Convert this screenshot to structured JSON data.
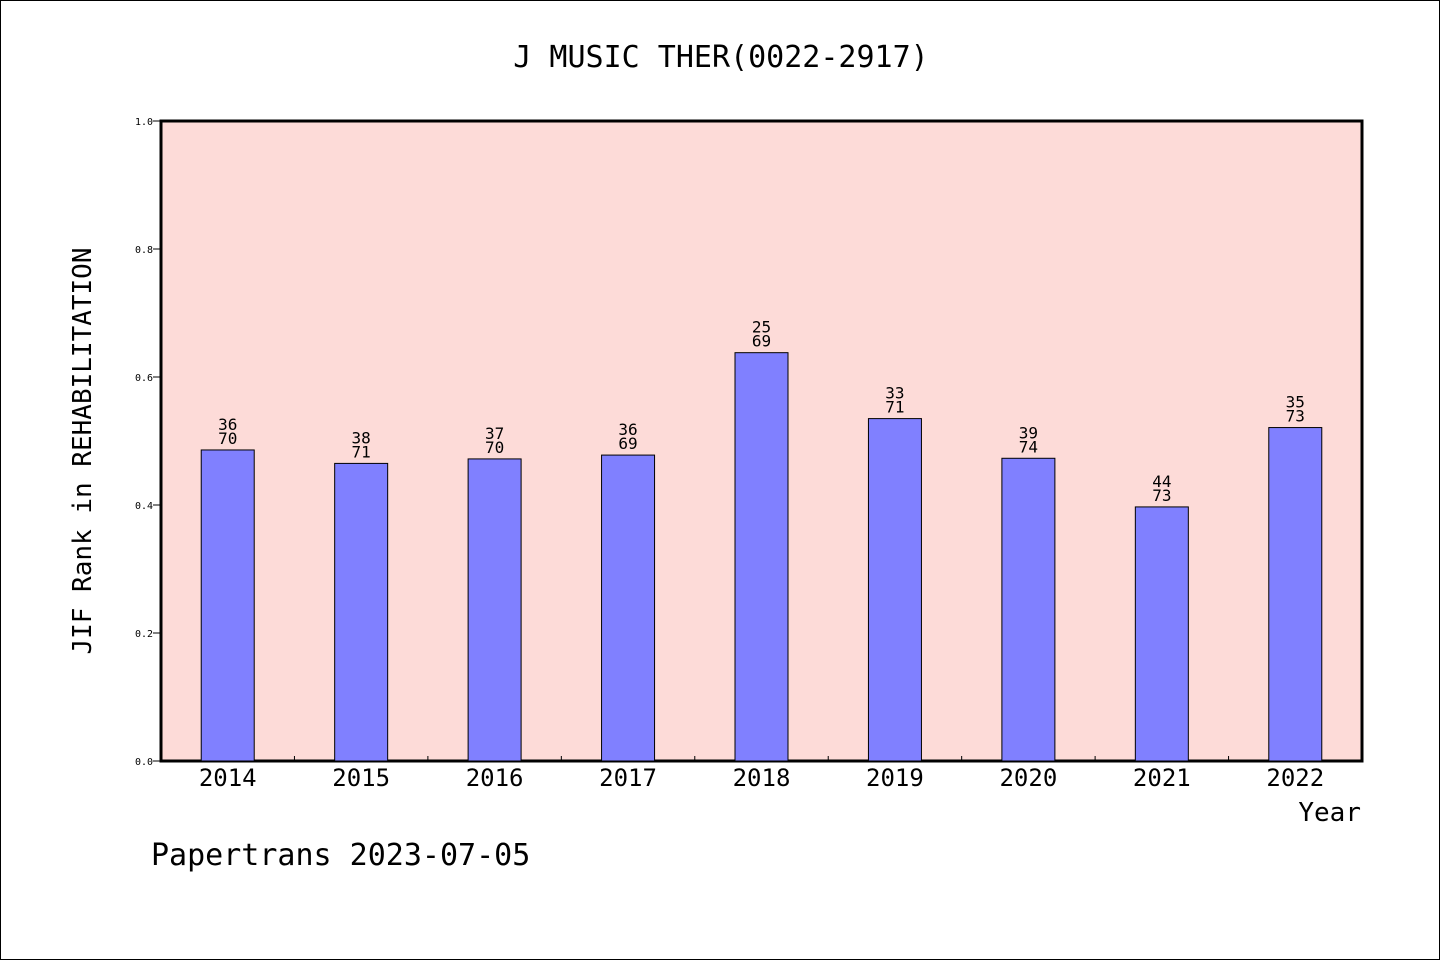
{
  "chart_data": {
    "type": "bar",
    "title": "J MUSIC THER(0022-2917)",
    "xlabel": "Year",
    "ylabel": "JIF Rank in REHABILITATION",
    "ylim": [
      0,
      1.0
    ],
    "yticks": [
      "0.0",
      "0.2",
      "0.4",
      "0.6",
      "0.8",
      "1.0"
    ],
    "grid": false,
    "categories": [
      "2014",
      "2015",
      "2016",
      "2017",
      "2018",
      "2019",
      "2020",
      "2021",
      "2022"
    ],
    "values": [
      0.486,
      0.465,
      0.472,
      0.478,
      0.638,
      0.535,
      0.473,
      0.397,
      0.521
    ],
    "ranks": [
      "36",
      "38",
      "37",
      "36",
      "25",
      "33",
      "39",
      "44",
      "35"
    ],
    "totals": [
      "70",
      "71",
      "70",
      "69",
      "69",
      "71",
      "74",
      "73",
      "73"
    ],
    "colors": {
      "background": "#fddbd8",
      "bar": "#8080ff",
      "bar_edge": "#000000"
    }
  },
  "footer": "Papertrans 2023-07-05"
}
